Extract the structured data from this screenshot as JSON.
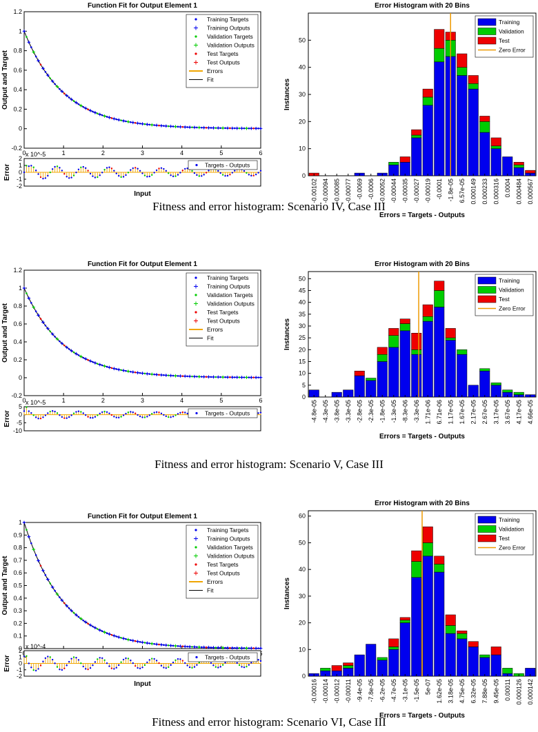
{
  "captions": [
    "Fitness and error histogram: Scenario IV, Case III",
    "Fitness and error histogram: Scenario V, Case III",
    "Fitness and error histogram: Scenario VI, Case III"
  ],
  "fit_legend": [
    "Training Targets",
    "Training Outputs",
    "Validation Targets",
    "Validation Outputs",
    "Test Targets",
    "Test Outputs",
    "Errors",
    "Fit"
  ],
  "hist_legend": [
    "Training",
    "Validation",
    "Test",
    "Zero Error"
  ],
  "colors": {
    "training": "#0000ee",
    "validation": "#00cc00",
    "test": "#ee0000",
    "zero": "#ee9900",
    "errors": "#f0a500",
    "fit": "#000000"
  },
  "chart_data": [
    {
      "type": "line",
      "title": "Function Fit for Output Element 1",
      "ylabel": "Output and Target",
      "xlim": [
        0,
        6
      ],
      "ylim": [
        -0.2,
        1.2
      ],
      "yticks": [
        "-0.2",
        "0",
        "0.2",
        "0.4",
        "0.6",
        "0.8",
        "1",
        "1.2"
      ],
      "xticks": [
        "0",
        "1",
        "2",
        "3",
        "4",
        "5",
        "6"
      ],
      "function": "exp(-x)",
      "error_panel": {
        "ylabel": "Error",
        "xlabel": "Input",
        "exponent": "x 10^-5",
        "ylim": [
          -2,
          2
        ],
        "yticks": [
          "-2",
          "-1",
          "0",
          "1",
          "2"
        ],
        "legend": "Targets - Outputs",
        "amplitude": 0.5
      }
    },
    {
      "type": "bar",
      "title": "Error Histogram with 20 Bins",
      "xlabel": "Errors = Targets - Outputs",
      "ylabel": "Instances",
      "ylim": [
        0,
        60
      ],
      "yticks": [
        "0",
        "10",
        "20",
        "30",
        "40",
        "50"
      ],
      "categories": [
        "-0.00102",
        "-0.00094",
        "-0.00085",
        "-0.00077",
        "-0.0069",
        "-0.0006",
        "-0.00052",
        "-0.00044",
        "-0.00035",
        "-0.00027",
        "-0.00019",
        "-0.0001",
        "-1.8e-05",
        "6.57e-05",
        "0.000149",
        "0.000233",
        "0.000316",
        "0.0004",
        "0.000484",
        "0.000567"
      ],
      "series": [
        {
          "name": "Training",
          "values": [
            0,
            0,
            0,
            0,
            1,
            0,
            1,
            4,
            5,
            14,
            26,
            42,
            44,
            37,
            32,
            16,
            10,
            7,
            3,
            1
          ]
        },
        {
          "name": "Validation",
          "values": [
            0,
            0,
            0,
            0,
            0,
            0,
            0,
            1,
            0,
            1,
            3,
            5,
            6,
            3,
            2,
            4,
            1,
            0,
            1,
            0
          ]
        },
        {
          "name": "Test",
          "values": [
            1,
            0,
            0,
            0,
            0,
            0,
            0,
            0,
            2,
            2,
            3,
            7,
            3,
            5,
            3,
            2,
            3,
            0,
            1,
            1
          ]
        }
      ],
      "zero_error_bin": 12.5
    },
    {
      "type": "line",
      "title": "Function Fit for Output Element 1",
      "ylabel": "Output and Target",
      "xlim": [
        0,
        6
      ],
      "ylim": [
        -0.2,
        1.2
      ],
      "yticks": [
        "-0.2",
        "0",
        "0.2",
        "0.4",
        "0.6",
        "0.8",
        "1",
        "1.2"
      ],
      "xticks": [
        "0",
        "1",
        "2",
        "3",
        "4",
        "5",
        "6"
      ],
      "function": "exp(-x)",
      "error_panel": {
        "ylabel": "Error",
        "xlabel": "",
        "exponent": "x 10^-5",
        "ylim": [
          -10,
          5
        ],
        "yticks": [
          "-10",
          "-5",
          "0",
          "5"
        ],
        "legend": "Targets - Outputs",
        "amplitude": 0.35
      }
    },
    {
      "type": "bar",
      "title": "Error Histogram with 20 Bins",
      "xlabel": "Errors = Targets - Outputs",
      "ylabel": "Instances",
      "ylim": [
        0,
        53
      ],
      "yticks": [
        "0",
        "5",
        "10",
        "15",
        "20",
        "25",
        "30",
        "35",
        "40",
        "45",
        "50"
      ],
      "categories": [
        "-4.8e-05",
        "-4.3e-05",
        "-3.8e-05",
        "-3.3e-05",
        "-2.8e-05",
        "-2.3e-05",
        "-1.8e-05",
        "-1.3e-05",
        "-8.3e-06",
        "-3.3e-06",
        "1.71e-06",
        "6.71e-06",
        "1.17e-05",
        "1.67e-05",
        "2.17e-05",
        "2.67e-05",
        "3.17e-05",
        "3.67e-05",
        "4.17e-05",
        "4.66e-05"
      ],
      "series": [
        {
          "name": "Training",
          "values": [
            3,
            0,
            2,
            3,
            9,
            7,
            15,
            21,
            28,
            18,
            32,
            38,
            24,
            18,
            5,
            11,
            5,
            2,
            1,
            1
          ]
        },
        {
          "name": "Validation",
          "values": [
            0,
            0,
            0,
            0,
            0,
            1,
            3,
            5,
            3,
            2,
            2,
            7,
            1,
            2,
            0,
            1,
            1,
            1,
            1,
            0
          ]
        },
        {
          "name": "Test",
          "values": [
            0,
            0,
            0,
            0,
            2,
            0,
            3,
            3,
            2,
            7,
            5,
            4,
            4,
            0,
            0,
            0,
            0,
            0,
            0,
            0
          ]
        }
      ],
      "zero_error_bin": 9.7
    },
    {
      "type": "line",
      "title": "Function Fit for Output Element 1",
      "ylabel": "Output and Target",
      "xlim": [
        0,
        6
      ],
      "ylim": [
        0,
        1
      ],
      "yticks": [
        "0",
        "0.1",
        "0.2",
        "0.3",
        "0.4",
        "0.5",
        "0.6",
        "0.7",
        "0.8",
        "0.9",
        "1"
      ],
      "xticks": [
        "0",
        "1",
        "2",
        "3",
        "4",
        "5",
        "6"
      ],
      "function": "exp(-x)",
      "error_panel": {
        "ylabel": "Error",
        "xlabel": "Input",
        "exponent": "x 10^-4",
        "ylim": [
          -2,
          2
        ],
        "yticks": [
          "-2",
          "-1",
          "0",
          "1",
          "2"
        ],
        "legend": "Targets - Outputs",
        "amplitude": 0.6
      }
    },
    {
      "type": "bar",
      "title": "Error Histogram with 20 Bins",
      "xlabel": "Errors = Targets - Outputs",
      "ylabel": "Instances",
      "ylim": [
        0,
        62
      ],
      "yticks": [
        "0",
        "10",
        "20",
        "30",
        "40",
        "50",
        "60"
      ],
      "categories": [
        "-0.00016",
        "-0.00014",
        "-0.00012",
        "-0.00011",
        "-9.4e-05",
        "-7.8e-05",
        "-6.2e-05",
        "-4.7e-05",
        "-3.1e-05",
        "-1.5e-05",
        "5e-07",
        "1.62e-05",
        "3.18e-05",
        "4.75e-05",
        "6.32e-05",
        "7.88e-05",
        "9.45e-05",
        "0.00011",
        "0.000126",
        "0.000142"
      ],
      "series": [
        {
          "name": "Training",
          "values": [
            1,
            2,
            2,
            3,
            8,
            12,
            6,
            10,
            20,
            37,
            45,
            39,
            16,
            14,
            11,
            7,
            8,
            1,
            0,
            3
          ]
        },
        {
          "name": "Validation",
          "values": [
            0,
            1,
            0,
            1,
            0,
            0,
            1,
            1,
            1,
            6,
            5,
            3,
            3,
            2,
            0,
            1,
            0,
            2,
            1,
            0
          ]
        },
        {
          "name": "Test",
          "values": [
            0,
            0,
            2,
            1,
            0,
            0,
            0,
            3,
            1,
            4,
            6,
            3,
            4,
            1,
            2,
            0,
            3,
            0,
            0,
            0
          ]
        }
      ],
      "zero_error_bin": 10.0
    }
  ]
}
